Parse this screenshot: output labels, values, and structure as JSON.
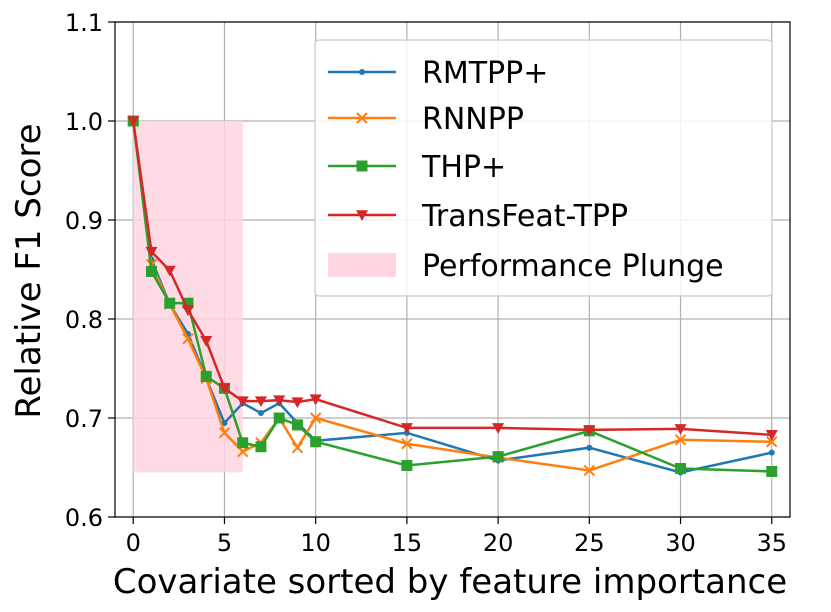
{
  "chart_data": {
    "type": "line",
    "xlabel": "Covariate sorted by feature importance",
    "ylabel": "Relative F1 Score",
    "xlim": [
      -1,
      36
    ],
    "ylim": [
      0.6,
      1.1
    ],
    "xticks": [
      0,
      5,
      10,
      15,
      20,
      25,
      30,
      35
    ],
    "yticks": [
      0.6,
      0.7,
      0.8,
      0.9,
      1.0,
      1.1
    ],
    "xtick_labels": [
      "0",
      "5",
      "10",
      "15",
      "20",
      "25",
      "30",
      "35"
    ],
    "ytick_labels": [
      "0.6",
      "0.7",
      "0.8",
      "0.9",
      "1.0",
      "1.1"
    ],
    "grid": true,
    "legend_position": "top-right",
    "x": [
      0,
      1,
      2,
      3,
      4,
      5,
      6,
      7,
      8,
      9,
      10,
      15,
      20,
      25,
      30,
      35
    ],
    "series": [
      {
        "name": "RMTPP+",
        "color": "#1f77b4",
        "marker": "dot",
        "values": [
          1.0,
          0.86,
          0.815,
          0.785,
          0.74,
          0.695,
          0.715,
          0.705,
          0.715,
          0.695,
          0.677,
          0.685,
          0.657,
          0.67,
          0.645,
          0.665
        ]
      },
      {
        "name": "RNNPP",
        "color": "#ff7f0e",
        "marker": "x",
        "values": [
          1.0,
          0.855,
          0.815,
          0.78,
          0.74,
          0.685,
          0.666,
          0.675,
          0.7,
          0.67,
          0.7,
          0.674,
          0.66,
          0.647,
          0.678,
          0.676
        ]
      },
      {
        "name": "THP+",
        "color": "#2ca02c",
        "marker": "square",
        "values": [
          1.0,
          0.848,
          0.816,
          0.816,
          0.742,
          0.73,
          0.675,
          0.671,
          0.7,
          0.693,
          0.676,
          0.652,
          0.661,
          0.687,
          0.649,
          0.646
        ]
      },
      {
        "name": "TransFeat-TPP",
        "color": "#d62728",
        "marker": "triangle-down",
        "values": [
          1.0,
          0.868,
          0.849,
          0.809,
          0.778,
          0.73,
          0.717,
          0.717,
          0.718,
          0.716,
          0.719,
          0.69,
          0.69,
          0.688,
          0.689,
          0.683
        ]
      }
    ],
    "region": {
      "name": "Performance Plunge",
      "color": "#ffd6e0",
      "x_range": [
        0,
        6
      ],
      "y_range": [
        0.645,
        1.0
      ]
    }
  }
}
